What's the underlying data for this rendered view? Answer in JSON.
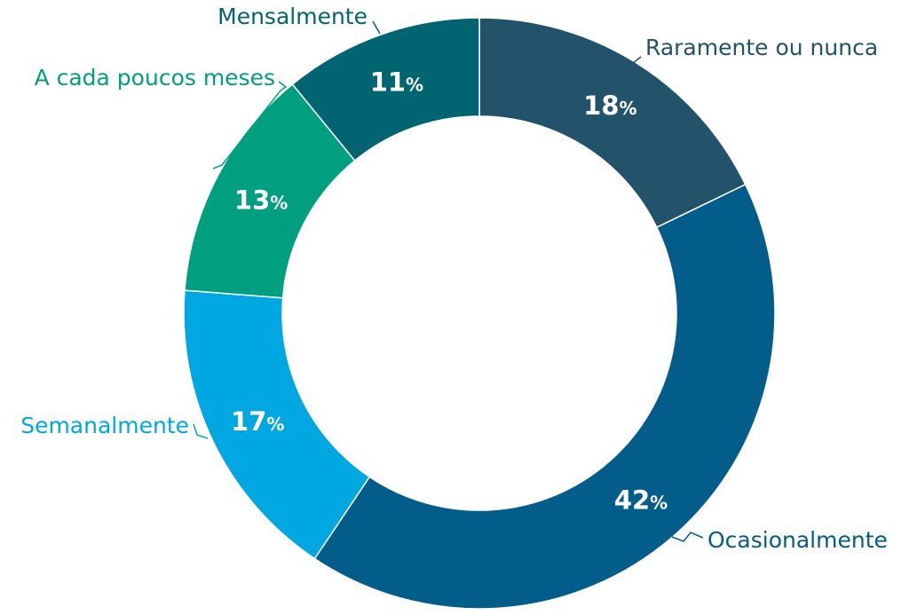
{
  "chart_data": {
    "type": "pie",
    "variant": "donut",
    "title": "",
    "legend": "none",
    "unit_suffix": "%",
    "slices": [
      {
        "label": "Raramente ou nunca",
        "value": 18,
        "color": "#22536b",
        "label_color": "#22536b"
      },
      {
        "label": "Ocasionalmente",
        "value": 42,
        "color": "#035d8a",
        "label_color": "#035d8a"
      },
      {
        "label": "Semanalmente",
        "value": 17,
        "color": "#00a7e1",
        "label_color": "#00a7e1"
      },
      {
        "label": "A cada poucos meses",
        "value": 13,
        "color": "#009f80",
        "label_color": "#009f80"
      },
      {
        "label": "Mensalmente",
        "value": 11,
        "color": "#006570",
        "label_color": "#006570"
      }
    ]
  }
}
